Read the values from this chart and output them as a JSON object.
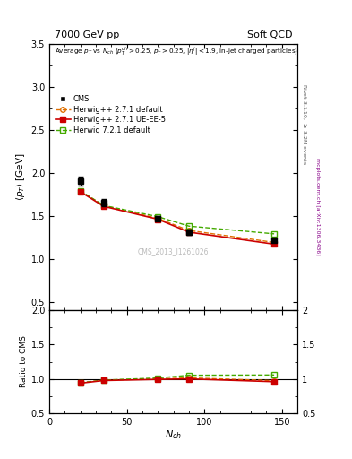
{
  "title_left": "7000 GeV pp",
  "title_right": "Soft QCD",
  "inner_title": "Average p_{T} vs N_{ch} (p_{T}^{ch}>0.25, p_{T}^{j}>0.25, |\\eta^{j}|<1.9, in-jet charged particles)",
  "xlabel": "N_{ch}",
  "ylabel_main": "\\langle p_{T} \\rangle [GeV]",
  "ylabel_ratio": "Ratio to CMS",
  "right_label_top": "Rivet 3.1.10, \\geq 3.2M events",
  "right_label_bottom": "mcplots.cern.ch [arXiv:1306.3436]",
  "watermark": "CMS_2013_I1261026",
  "cms_x": [
    20,
    35,
    70,
    90,
    145
  ],
  "cms_y": [
    1.9,
    1.65,
    1.47,
    1.31,
    1.22
  ],
  "cms_yerr": [
    0.05,
    0.04,
    0.03,
    0.03,
    0.03
  ],
  "herwig271_default_x": [
    20,
    35,
    70,
    90,
    145
  ],
  "herwig271_default_y": [
    1.79,
    1.62,
    1.47,
    1.33,
    1.19
  ],
  "herwig271_ueee5_x": [
    20,
    35,
    70,
    90,
    145
  ],
  "herwig271_ueee5_y": [
    1.78,
    1.61,
    1.46,
    1.31,
    1.17
  ],
  "herwig721_default_x": [
    20,
    35,
    70,
    90,
    145
  ],
  "herwig721_default_y": [
    1.79,
    1.62,
    1.49,
    1.38,
    1.29
  ],
  "herwig271_default_ratio": [
    0.942,
    0.982,
    1.0,
    1.015,
    0.975
  ],
  "herwig271_ueee5_ratio": [
    0.937,
    0.976,
    0.993,
    1.0,
    0.959
  ],
  "herwig721_default_ratio": [
    0.942,
    0.982,
    1.014,
    1.053,
    1.057
  ],
  "ylim_main": [
    0.4,
    3.5
  ],
  "ylim_ratio": [
    0.5,
    2.0
  ],
  "xlim": [
    0,
    160
  ],
  "cms_color": "#000000",
  "herwig271_default_color": "#e07000",
  "herwig271_ueee5_color": "#cc0000",
  "herwig721_default_color": "#44aa00",
  "bg_color": "#ffffff",
  "right_label_top_color": "#555555",
  "right_label_bottom_color": "#880088"
}
